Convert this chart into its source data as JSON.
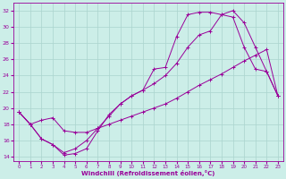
{
  "xlabel": "Windchill (Refroidissement éolien,°C)",
  "bg_color": "#cceee8",
  "grid_color": "#aad4ce",
  "line_color": "#990099",
  "xlim": [
    -0.5,
    23.5
  ],
  "ylim": [
    13.5,
    33.0
  ],
  "xticks": [
    0,
    1,
    2,
    3,
    4,
    5,
    6,
    7,
    8,
    9,
    10,
    11,
    12,
    13,
    14,
    15,
    16,
    17,
    18,
    19,
    20,
    21,
    22,
    23
  ],
  "yticks": [
    14,
    16,
    18,
    20,
    22,
    24,
    26,
    28,
    30,
    32
  ],
  "curves": [
    {
      "x": [
        0,
        1,
        2,
        3,
        4,
        5,
        6,
        7,
        8,
        9,
        10,
        11,
        12,
        13,
        14,
        15,
        16,
        17,
        18,
        19,
        20,
        21,
        22,
        23
      ],
      "y": [
        19.5,
        18.0,
        16.2,
        15.5,
        14.2,
        14.4,
        15.0,
        17.2,
        19.2,
        20.5,
        21.5,
        22.2,
        24.8,
        25.0,
        28.8,
        31.5,
        31.8,
        31.8,
        31.5,
        31.2,
        27.5,
        24.8,
        24.5,
        21.5
      ]
    },
    {
      "x": [
        0,
        1,
        2,
        3,
        4,
        5,
        6,
        7,
        8,
        9,
        10,
        11,
        12,
        13,
        14,
        15,
        16,
        17,
        18,
        19,
        20,
        21,
        22,
        23
      ],
      "y": [
        19.5,
        18.0,
        16.2,
        15.5,
        14.5,
        15.0,
        16.0,
        17.5,
        19.0,
        20.5,
        21.5,
        22.2,
        23.0,
        24.0,
        25.5,
        27.5,
        29.0,
        29.5,
        31.5,
        32.0,
        30.5,
        27.5,
        24.5,
        21.5
      ]
    },
    {
      "x": [
        0,
        1,
        2,
        3,
        4,
        5,
        6,
        7,
        8,
        9,
        10,
        11,
        12,
        13,
        14,
        15,
        16,
        17,
        18,
        19,
        20,
        21,
        22,
        23
      ],
      "y": [
        19.5,
        18.0,
        18.5,
        18.8,
        17.2,
        17.0,
        17.0,
        17.5,
        18.0,
        18.5,
        19.0,
        19.5,
        20.0,
        20.5,
        21.2,
        22.0,
        22.8,
        23.5,
        24.2,
        25.0,
        25.8,
        26.5,
        27.2,
        21.5
      ]
    }
  ]
}
